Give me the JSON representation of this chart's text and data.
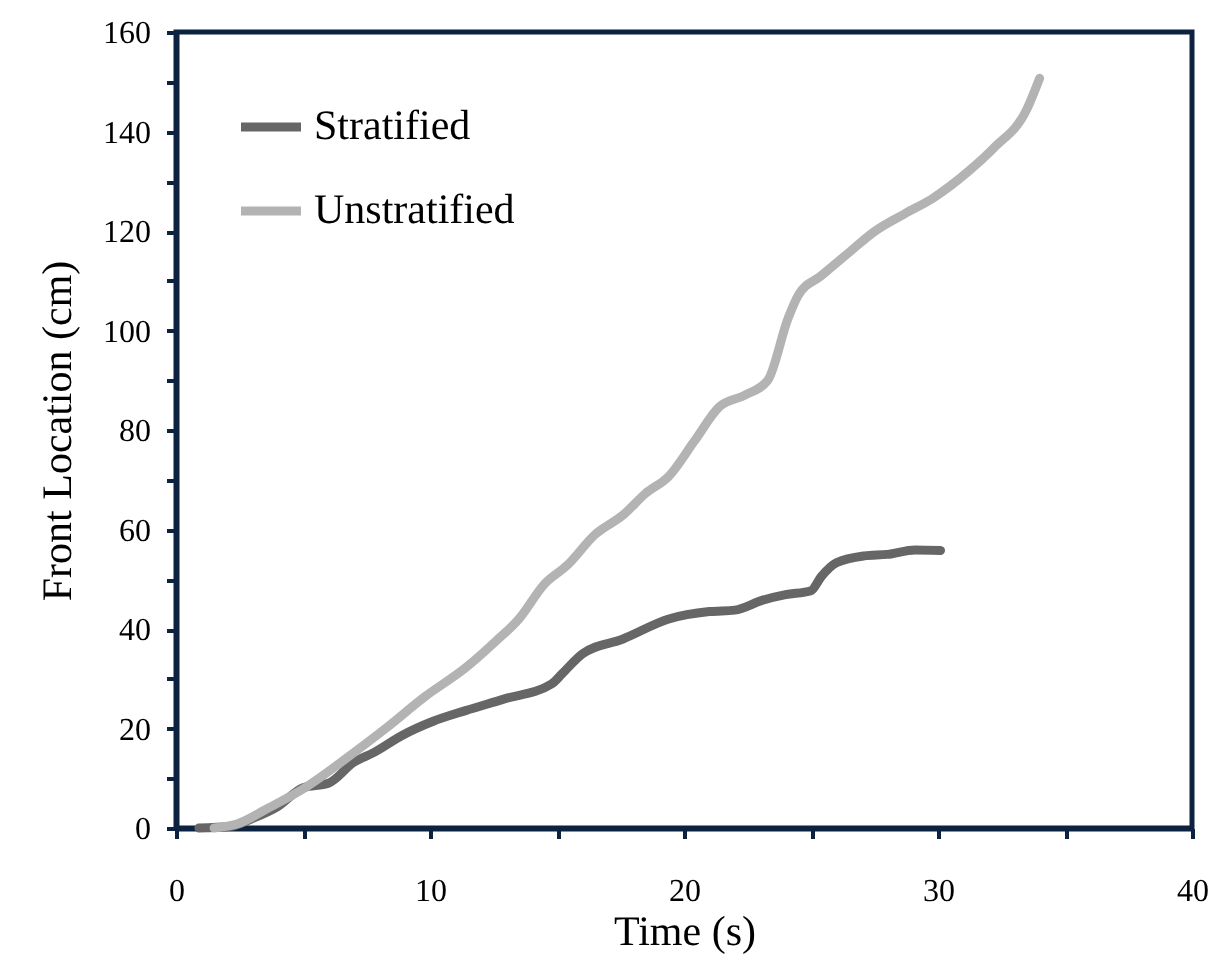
{
  "chart_data": {
    "type": "line",
    "xlabel": "Time (s)",
    "ylabel": "Front Location (cm)",
    "xlim": [
      0,
      40
    ],
    "ylim": [
      0,
      160
    ],
    "xticks": [
      0,
      {
        "value": 5,
        "label": null
      },
      10,
      {
        "value": 15,
        "label": null
      },
      20,
      {
        "value": 25,
        "label": null
      },
      30,
      {
        "value": 35,
        "label": null
      },
      40
    ],
    "yticks": [
      0,
      {
        "value": 10,
        "label": null
      },
      20,
      {
        "value": 30,
        "label": null
      },
      40,
      {
        "value": 50,
        "label": null
      },
      60,
      {
        "value": 70,
        "label": null
      },
      80,
      {
        "value": 90,
        "label": null
      },
      100,
      {
        "value": 110,
        "label": null
      },
      120,
      {
        "value": 130,
        "label": null
      },
      140,
      {
        "value": 150,
        "label": null
      },
      160
    ],
    "legend": "top left",
    "grid": false,
    "marker": "none",
    "line_style": "solid",
    "series": [
      {
        "name": "Stratified",
        "color": "#666666",
        "x": [
          0.9,
          2.1,
          3.0,
          4.0,
          5.0,
          6.0,
          7.0,
          7.8,
          8.9,
          10.1,
          11.4,
          12.9,
          14.8,
          15.2,
          16.0,
          17.6,
          19.4,
          21.0,
          22.0,
          23.1,
          24.0,
          25.0,
          25.4,
          26.0,
          27.1,
          28.0,
          29.1,
          30.1
        ],
        "values": [
          0,
          0.3,
          1.9,
          4.3,
          8.1,
          9,
          13.2,
          15.2,
          18.6,
          21.4,
          23.6,
          25.9,
          29,
          31,
          35,
          38,
          42,
          43.5,
          43.8,
          45.8,
          46.9,
          47.7,
          50.5,
          53.3,
          54.7,
          55,
          55.9,
          55.8
        ]
      },
      {
        "name": "Unstratified",
        "color": "#b3b3b3",
        "x": [
          1.5,
          2.4,
          3.6,
          5.2,
          6.7,
          8.3,
          9.8,
          11.4,
          12.6,
          13.5,
          14.5,
          15.4,
          16.5,
          17.6,
          18.5,
          19.4,
          20.4,
          21.4,
          22.4,
          23.3,
          24.1,
          24.5,
          25.4,
          26.5,
          27.5,
          28.7,
          29.8,
          31.2,
          32.2,
          33.5,
          34.0
        ],
        "values": [
          0,
          0.8,
          3.9,
          8.5,
          14,
          20.2,
          26.4,
          32.2,
          37.6,
          42,
          49,
          52.8,
          59,
          62.9,
          67.3,
          70.7,
          77.7,
          84.7,
          87,
          90,
          102.5,
          107.1,
          111,
          115.7,
          119.9,
          123.5,
          126.6,
          132,
          136.7,
          144.5,
          150.7
        ]
      }
    ]
  }
}
